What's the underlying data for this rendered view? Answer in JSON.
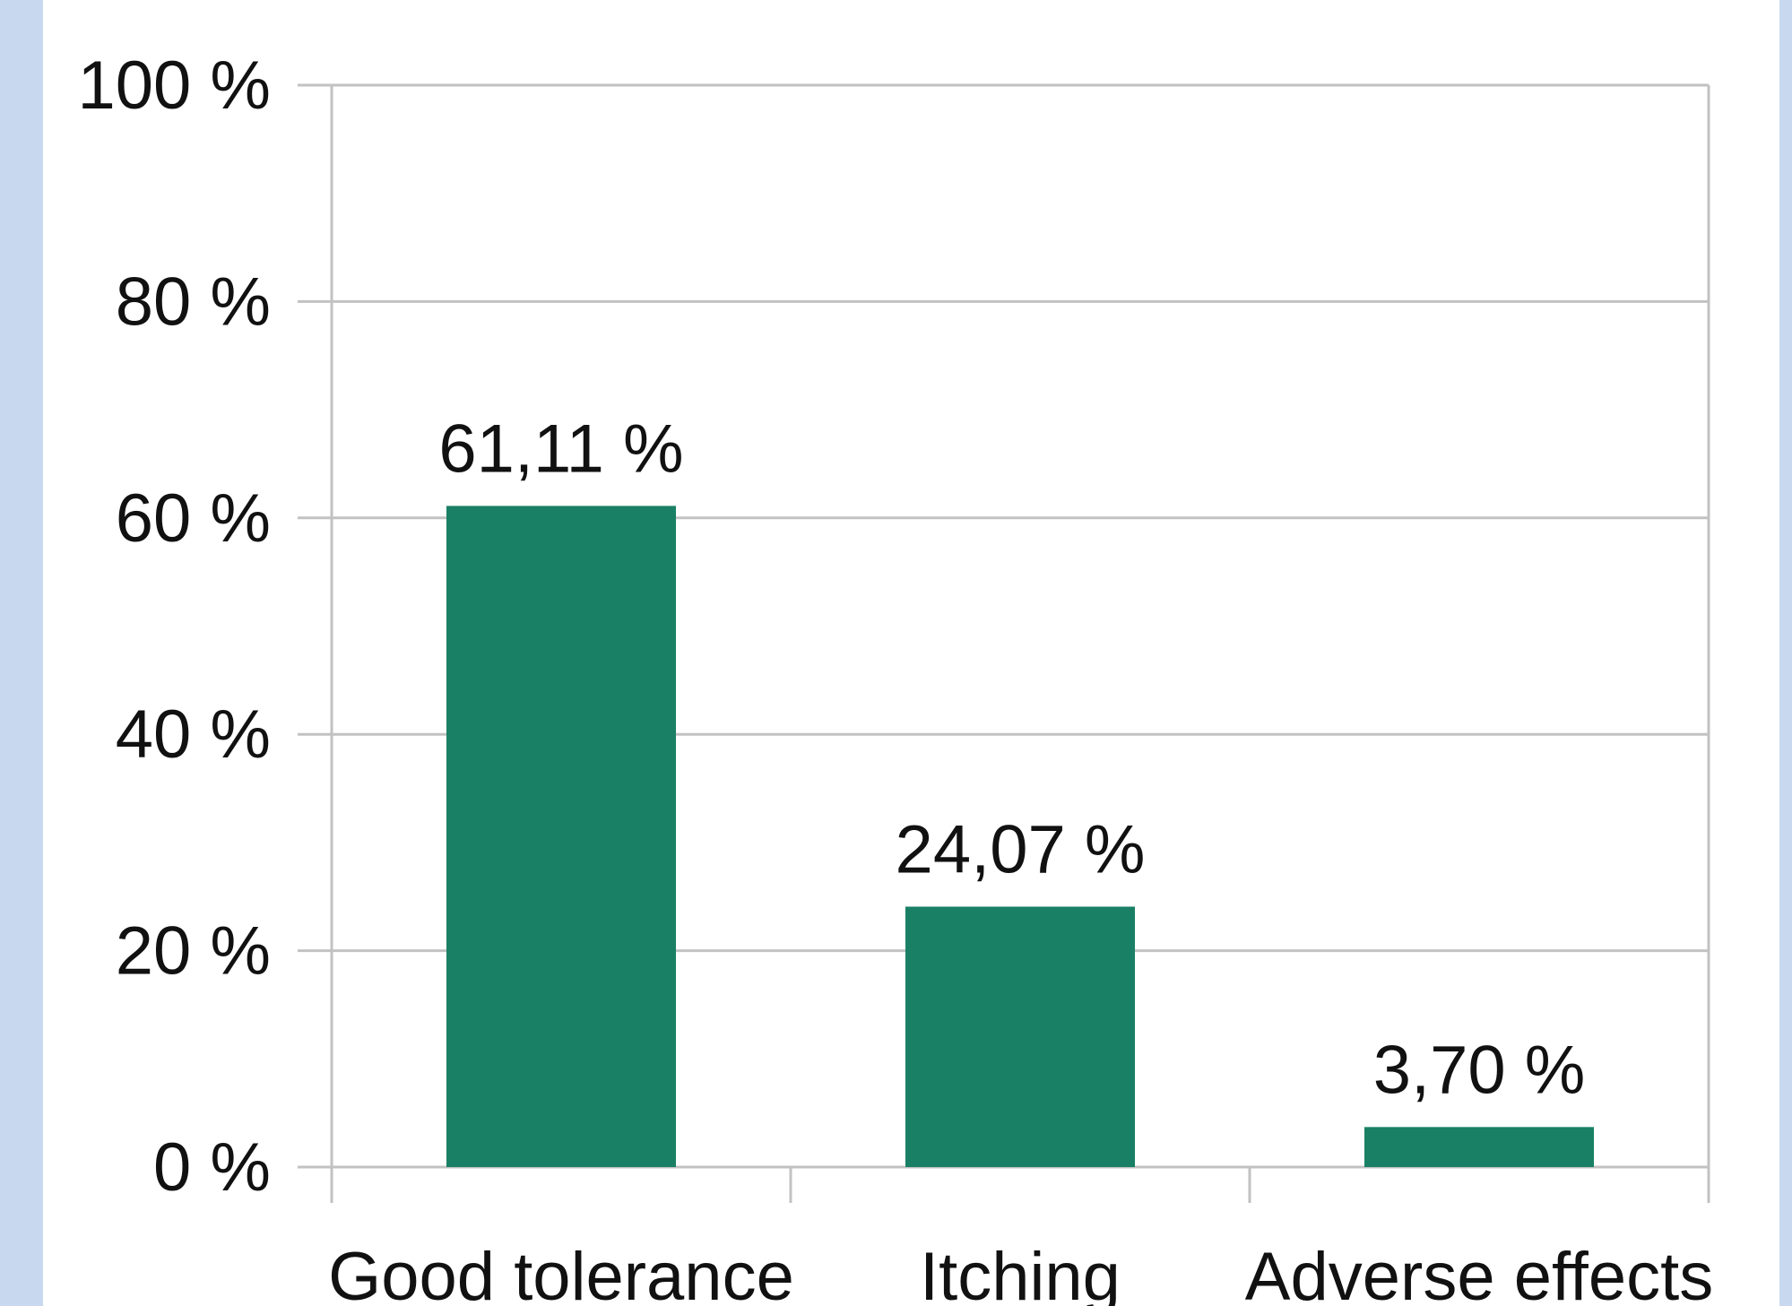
{
  "chart_data": {
    "type": "bar",
    "title": "",
    "xlabel": "",
    "ylabel": "",
    "categories": [
      "Good tolerance",
      "Itching",
      "Adverse effects"
    ],
    "values": [
      61.11,
      24.07,
      3.7
    ],
    "data_labels": [
      "61,11 %",
      "24,07 %",
      "3,70 %"
    ],
    "ylim": [
      0,
      100
    ],
    "y_ticks": [
      0,
      20,
      40,
      60,
      80,
      100
    ],
    "y_tick_labels": [
      "0 %",
      "20 %",
      "40 %",
      "60 %",
      "80 %",
      "100 %"
    ],
    "grid": true,
    "legend": "none",
    "colors": {
      "bar": "#1a8065",
      "grid": "#c2c2c2",
      "frame": "#c8d8ee"
    }
  }
}
